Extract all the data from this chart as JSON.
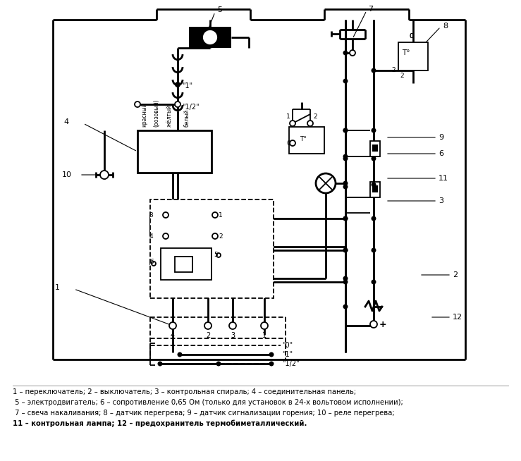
{
  "background_color": "#ffffff",
  "line_color": "#000000",
  "fig_width": 7.39,
  "fig_height": 6.54,
  "legend_lines": [
    "1 – переключатель; 2 – выключатель; 3 – контрольная спираль; 4 – соединительная панель;",
    " 5 – электродвигатель; 6 – сопротивление 0,65 Ом (только для установок в 24-х вольтовом исполнении);",
    " 7 – свеча накаливания; 8 – датчик перегрева; 9 – датчик сигнализации горения; 10 – реле перегрева;",
    "11 – контрольная лампа; 12 – предохранитель термобиметаллический."
  ]
}
